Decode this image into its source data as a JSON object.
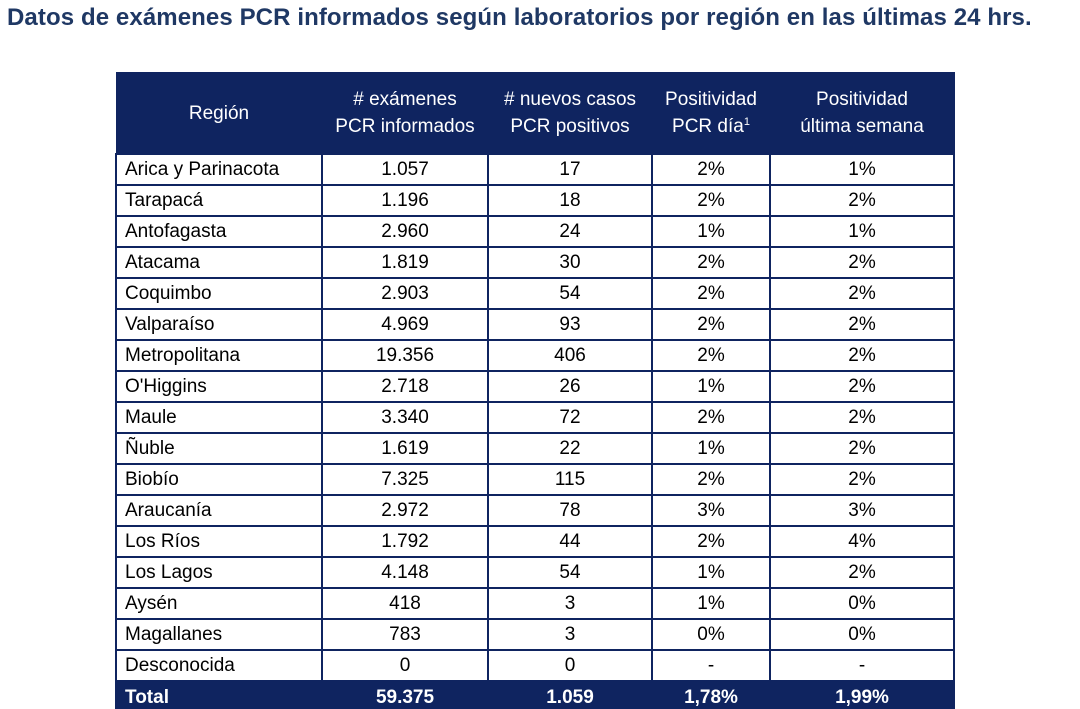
{
  "title": "Datos de exámenes PCR informados según laboratorios por región en las últimas 24 hrs.",
  "table": {
    "headers": {
      "region": "Región",
      "examenes_l1": "# exámenes",
      "examenes_l2": "PCR informados",
      "casos_l1": "# nuevos casos",
      "casos_l2": "PCR positivos",
      "pos_dia_l1": "Positividad",
      "pos_dia_l2": "PCR día",
      "pos_dia_sup": "1",
      "pos_sem_l1": "Positividad",
      "pos_sem_l2": "última semana"
    },
    "rows": [
      {
        "region": "Arica y Parinacota",
        "examenes": "1.057",
        "casos": "17",
        "pos_dia": "2%",
        "pos_semana": "1%"
      },
      {
        "region": "Tarapacá",
        "examenes": "1.196",
        "casos": "18",
        "pos_dia": "2%",
        "pos_semana": "2%"
      },
      {
        "region": "Antofagasta",
        "examenes": "2.960",
        "casos": "24",
        "pos_dia": "1%",
        "pos_semana": "1%"
      },
      {
        "region": "Atacama",
        "examenes": "1.819",
        "casos": "30",
        "pos_dia": "2%",
        "pos_semana": "2%"
      },
      {
        "region": "Coquimbo",
        "examenes": "2.903",
        "casos": "54",
        "pos_dia": "2%",
        "pos_semana": "2%"
      },
      {
        "region": "Valparaíso",
        "examenes": "4.969",
        "casos": "93",
        "pos_dia": "2%",
        "pos_semana": "2%"
      },
      {
        "region": "Metropolitana",
        "examenes": "19.356",
        "casos": "406",
        "pos_dia": "2%",
        "pos_semana": "2%"
      },
      {
        "region": "O'Higgins",
        "examenes": "2.718",
        "casos": "26",
        "pos_dia": "1%",
        "pos_semana": "2%"
      },
      {
        "region": "Maule",
        "examenes": "3.340",
        "casos": "72",
        "pos_dia": "2%",
        "pos_semana": "2%"
      },
      {
        "region": "Ñuble",
        "examenes": "1.619",
        "casos": "22",
        "pos_dia": "1%",
        "pos_semana": "2%"
      },
      {
        "region": "Biobío",
        "examenes": "7.325",
        "casos": "115",
        "pos_dia": "2%",
        "pos_semana": "2%"
      },
      {
        "region": "Araucanía",
        "examenes": "2.972",
        "casos": "78",
        "pos_dia": "3%",
        "pos_semana": "3%"
      },
      {
        "region": "Los Ríos",
        "examenes": "1.792",
        "casos": "44",
        "pos_dia": "2%",
        "pos_semana": "4%"
      },
      {
        "region": "Los Lagos",
        "examenes": "4.148",
        "casos": "54",
        "pos_dia": "1%",
        "pos_semana": "2%"
      },
      {
        "region": "Aysén",
        "examenes": "418",
        "casos": "3",
        "pos_dia": "1%",
        "pos_semana": "0%"
      },
      {
        "region": "Magallanes",
        "examenes": "783",
        "casos": "3",
        "pos_dia": "0%",
        "pos_semana": "0%"
      },
      {
        "region": "Desconocida",
        "examenes": "0",
        "casos": "0",
        "pos_dia": "-",
        "pos_semana": "-"
      }
    ],
    "total": {
      "label": "Total",
      "examenes": "59.375",
      "casos": "1.059",
      "pos_dia": "1,78%",
      "pos_semana": "1,99%"
    }
  },
  "colors": {
    "header_bg": "#0f2460",
    "title": "#1f3864"
  }
}
